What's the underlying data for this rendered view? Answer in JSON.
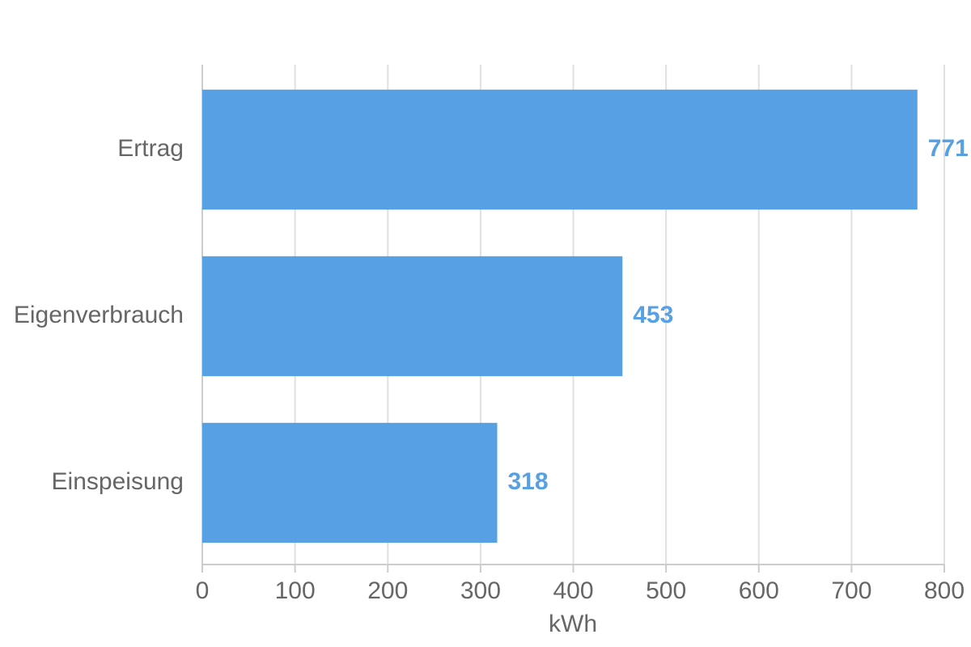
{
  "chart_data": {
    "type": "bar",
    "orientation": "horizontal",
    "categories": [
      "Ertrag",
      "Eigenverbrauch",
      "Einspeisung"
    ],
    "values": [
      771,
      453,
      318
    ],
    "color": "#56a0e3",
    "xlabel": "kWh",
    "xlim": [
      0,
      800
    ],
    "xticks": [
      0,
      100,
      200,
      300,
      400,
      500,
      600,
      700,
      800
    ],
    "grid": true,
    "data_labels": true
  }
}
